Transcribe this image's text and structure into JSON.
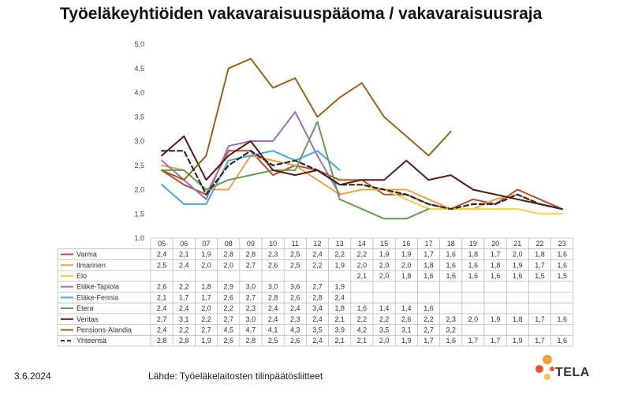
{
  "title": "Työeläkeyhtiöiden vakavaraisuuspääoma / vakavaraisuusraja",
  "footer": {
    "date": "3.6.2024",
    "source": "Lähde: Työeläkelaitosten tilinpäätösliitteet"
  },
  "logo": {
    "text": "TELA",
    "colors": [
      "#E8542C",
      "#F2A03A",
      "#F5C74A"
    ]
  },
  "chart_data": {
    "type": "line",
    "x": [
      "05",
      "06",
      "07",
      "08",
      "09",
      "10",
      "11",
      "12",
      "13",
      "14",
      "15",
      "16",
      "17",
      "18",
      "19",
      "20",
      "21",
      "22",
      "23"
    ],
    "yticks": [
      "1,0",
      "1,5",
      "2,0",
      "2,5",
      "3,0",
      "3,5",
      "4,0",
      "4,5",
      "5,0"
    ],
    "ylim": [
      1.0,
      5.0
    ],
    "series": [
      {
        "name": "Varma",
        "color": "#B5502C",
        "dashed": false,
        "values": [
          2.4,
          2.1,
          1.9,
          2.8,
          2.8,
          2.3,
          2.5,
          2.4,
          2.2,
          2.2,
          1.9,
          1.9,
          1.7,
          1.6,
          1.8,
          1.7,
          2.0,
          1.8,
          1.6
        ],
        "labels": [
          "2,4",
          "2,1",
          "1,9",
          "2,8",
          "2,8",
          "2,3",
          "2,5",
          "2,4",
          "2,2",
          "2,2",
          "1,9",
          "1,9",
          "1,7",
          "1,6",
          "1,8",
          "1,7",
          "2,0",
          "1,8",
          "1,6"
        ]
      },
      {
        "name": "Ilmarinen",
        "color": "#E8A24A",
        "dashed": false,
        "values": [
          2.5,
          2.4,
          2.0,
          2.0,
          2.7,
          2.6,
          2.5,
          2.2,
          1.9,
          2.0,
          2.0,
          2.0,
          1.8,
          1.6,
          1.6,
          1.8,
          1.9,
          1.7,
          1.6
        ],
        "labels": [
          "2,5",
          "2,4",
          "2,0",
          "2,0",
          "2,7",
          "2,6",
          "2,5",
          "2,2",
          "1,9",
          "2,0",
          "2,0",
          "2,0",
          "1,8",
          "1,6",
          "1,6",
          "1,8",
          "1,9",
          "1,7",
          "1,6"
        ]
      },
      {
        "name": "Elo",
        "color": "#F2D04A",
        "dashed": false,
        "values": [
          null,
          null,
          null,
          null,
          null,
          null,
          null,
          null,
          null,
          2.1,
          2.0,
          1.8,
          1.6,
          1.6,
          1.6,
          1.6,
          1.6,
          1.5,
          1.5
        ],
        "labels": [
          "",
          "",
          "",
          "",
          "",
          "",
          "",
          "",
          "",
          "2,1",
          "2,0",
          "1,8",
          "1,6",
          "1,6",
          "1,6",
          "1,6",
          "1,6",
          "1,5",
          "1,5"
        ]
      },
      {
        "name": "Eläke-Tapiola",
        "color": "#A070B8",
        "dashed": false,
        "values": [
          2.6,
          2.2,
          1.8,
          2.9,
          3.0,
          3.0,
          3.6,
          2.7,
          1.9,
          null,
          null,
          null,
          null,
          null,
          null,
          null,
          null,
          null,
          null
        ],
        "labels": [
          "2,6",
          "2,2",
          "1,8",
          "2,9",
          "3,0",
          "3,0",
          "3,6",
          "2,7",
          "1,9",
          "",
          "",
          "",
          "",
          "",
          "",
          "",
          "",
          "",
          ""
        ]
      },
      {
        "name": "Eläke-Fennia",
        "color": "#4AA8D8",
        "dashed": false,
        "values": [
          2.1,
          1.7,
          1.7,
          2.6,
          2.7,
          2.8,
          2.6,
          2.8,
          2.4,
          null,
          null,
          null,
          null,
          null,
          null,
          null,
          null,
          null,
          null
        ],
        "labels": [
          "2,1",
          "1,7",
          "1,7",
          "2,6",
          "2,7",
          "2,8",
          "2,6",
          "2,8",
          "2,4",
          "",
          "",
          "",
          "",
          "",
          "",
          "",
          "",
          "",
          ""
        ]
      },
      {
        "name": "Etera",
        "color": "#6A9A5A",
        "dashed": false,
        "values": [
          2.4,
          2.4,
          2.0,
          2.2,
          2.3,
          2.4,
          2.4,
          3.4,
          1.8,
          1.6,
          1.4,
          1.4,
          1.6,
          null,
          null,
          null,
          null,
          null,
          null
        ],
        "labels": [
          "2,4",
          "2,4",
          "2,0",
          "2,2",
          "2,3",
          "2,4",
          "2,4",
          "3,4",
          "1,8",
          "1,6",
          "1,4",
          "1,4",
          "1,6",
          "",
          "",
          "",
          "",
          "",
          ""
        ]
      },
      {
        "name": "Veritas",
        "color": "#5A1A10",
        "dashed": false,
        "values": [
          2.7,
          3.1,
          2.2,
          2.7,
          3.0,
          2.4,
          2.3,
          2.4,
          2.1,
          2.2,
          2.2,
          2.6,
          2.2,
          2.3,
          2.0,
          1.9,
          1.8,
          1.7,
          1.6
        ],
        "labels": [
          "2,7",
          "3,1",
          "2,2",
          "2,7",
          "3,0",
          "2,4",
          "2,3",
          "2,4",
          "2,1",
          "2,2",
          "2,2",
          "2,6",
          "2,2",
          "2,3",
          "2,0",
          "1,9",
          "1,8",
          "1,7",
          "1,6"
        ]
      },
      {
        "name": "Pensions-Alandia",
        "color": "#9A6418",
        "dashed": false,
        "values": [
          2.4,
          2.2,
          2.7,
          4.5,
          4.7,
          4.1,
          4.3,
          3.5,
          3.9,
          4.2,
          3.5,
          3.1,
          2.7,
          3.2,
          null,
          null,
          null,
          null,
          null
        ],
        "labels": [
          "2,4",
          "2,2",
          "2,7",
          "4,5",
          "4,7",
          "4,1",
          "4,3",
          "3,5",
          "3,9",
          "4,2",
          "3,5",
          "3,1",
          "2,7",
          "3,2",
          "",
          "",
          "",
          "",
          ""
        ]
      },
      {
        "name": "Yhteensä",
        "color": "#2A2A2A",
        "dashed": true,
        "values": [
          2.8,
          2.8,
          1.9,
          2.5,
          2.8,
          2.5,
          2.6,
          2.4,
          2.1,
          2.1,
          2.0,
          1.9,
          1.7,
          1.6,
          1.7,
          1.7,
          1.9,
          1.7,
          1.6
        ],
        "labels": [
          "2,8",
          "2,8",
          "1,9",
          "2,5",
          "2,8",
          "2,5",
          "2,6",
          "2,4",
          "2,1",
          "2,1",
          "2,0",
          "1,9",
          "1,7",
          "1,6",
          "1,7",
          "1,7",
          "1,9",
          "1,7",
          "1,6"
        ]
      }
    ]
  }
}
